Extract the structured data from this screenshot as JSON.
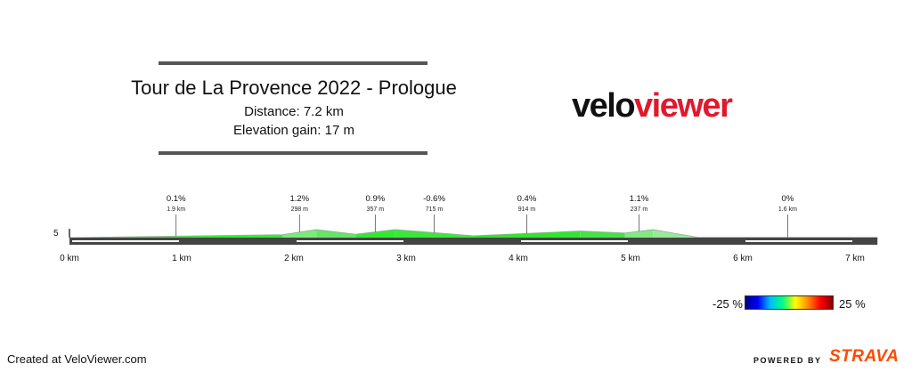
{
  "header": {
    "title": "Tour de La Provence 2022 - Prologue",
    "distance": "Distance: 7.2 km",
    "elevation_gain": "Elevation gain: 17 m"
  },
  "logo": {
    "part1": "velo",
    "part2": "viewer"
  },
  "chart_data": {
    "type": "area",
    "x_unit": "km",
    "xlim": [
      0,
      7.2
    ],
    "x_ticks": [
      0,
      1,
      2,
      3,
      4,
      5,
      6,
      7
    ],
    "x_tick_labels": [
      "0 km",
      "1 km",
      "2 km",
      "3 km",
      "4 km",
      "5 km",
      "6 km",
      "7 km"
    ],
    "y_tick_labels": [
      "5"
    ],
    "profile": [
      {
        "x": 0.0,
        "y": 0
      },
      {
        "x": 1.9,
        "y": 2
      },
      {
        "x": 2.2,
        "y": 5.5
      },
      {
        "x": 2.55,
        "y": 2.3
      },
      {
        "x": 2.9,
        "y": 5.5
      },
      {
        "x": 3.6,
        "y": 1.3
      },
      {
        "x": 4.55,
        "y": 4.5
      },
      {
        "x": 4.95,
        "y": 3.2
      },
      {
        "x": 5.2,
        "y": 5.5
      },
      {
        "x": 5.6,
        "y": 0.2
      },
      {
        "x": 7.2,
        "y": 0.2
      }
    ],
    "segments": [
      {
        "start": 0.0,
        "end": 1.9,
        "grade": "0.1%",
        "length": "1.9 km",
        "color": "#2cf02c"
      },
      {
        "start": 1.9,
        "end": 2.2,
        "grade": "1.2%",
        "length": "298 m",
        "color": "#7aea7a"
      },
      {
        "start": 2.55,
        "end": 2.9,
        "grade": "0.9%",
        "length": "357 m",
        "color": "#33e833"
      },
      {
        "start": 2.9,
        "end": 3.6,
        "grade": "-0.6%",
        "length": "715 m",
        "color": "#3ae83a"
      },
      {
        "start": 3.6,
        "end": 4.55,
        "grade": "0.4%",
        "length": "914 m",
        "color": "#2fe52f"
      },
      {
        "start": 4.95,
        "end": 5.2,
        "grade": "1.1%",
        "length": "237 m",
        "color": "#82ea82"
      },
      {
        "start": 5.6,
        "end": 7.2,
        "grade": "0%",
        "length": "1.6 km",
        "color": "#2cf02c"
      }
    ],
    "fill_segments": [
      {
        "start": 0.0,
        "end": 1.9,
        "color": "#2cf02c"
      },
      {
        "start": 1.9,
        "end": 2.2,
        "color": "#7aea7a"
      },
      {
        "start": 2.2,
        "end": 2.55,
        "color": "#66e466"
      },
      {
        "start": 2.55,
        "end": 2.9,
        "color": "#33e833"
      },
      {
        "start": 2.9,
        "end": 3.6,
        "color": "#3ae83a"
      },
      {
        "start": 3.6,
        "end": 4.55,
        "color": "#2fe52f"
      },
      {
        "start": 4.55,
        "end": 4.95,
        "color": "#44e244"
      },
      {
        "start": 4.95,
        "end": 5.2,
        "color": "#82ea82"
      },
      {
        "start": 5.2,
        "end": 5.6,
        "color": "#9ae89a"
      },
      {
        "start": 5.6,
        "end": 7.2,
        "color": "#2cf02c"
      }
    ]
  },
  "legend": {
    "min_label": "-25 %",
    "max_label": "25 %",
    "gradient": [
      "#00008b",
      "#0000ff",
      "#00bfff",
      "#00ff7f",
      "#ffff00",
      "#ff8c00",
      "#ff0000",
      "#8b0000"
    ]
  },
  "footer": {
    "created": "Created at VeloViewer.com",
    "powered": "POWERED BY",
    "brand": "STRAVA"
  },
  "colors": {
    "base_dark": "#444444",
    "base_light": "#ffffff",
    "guide_line": "#555555"
  }
}
